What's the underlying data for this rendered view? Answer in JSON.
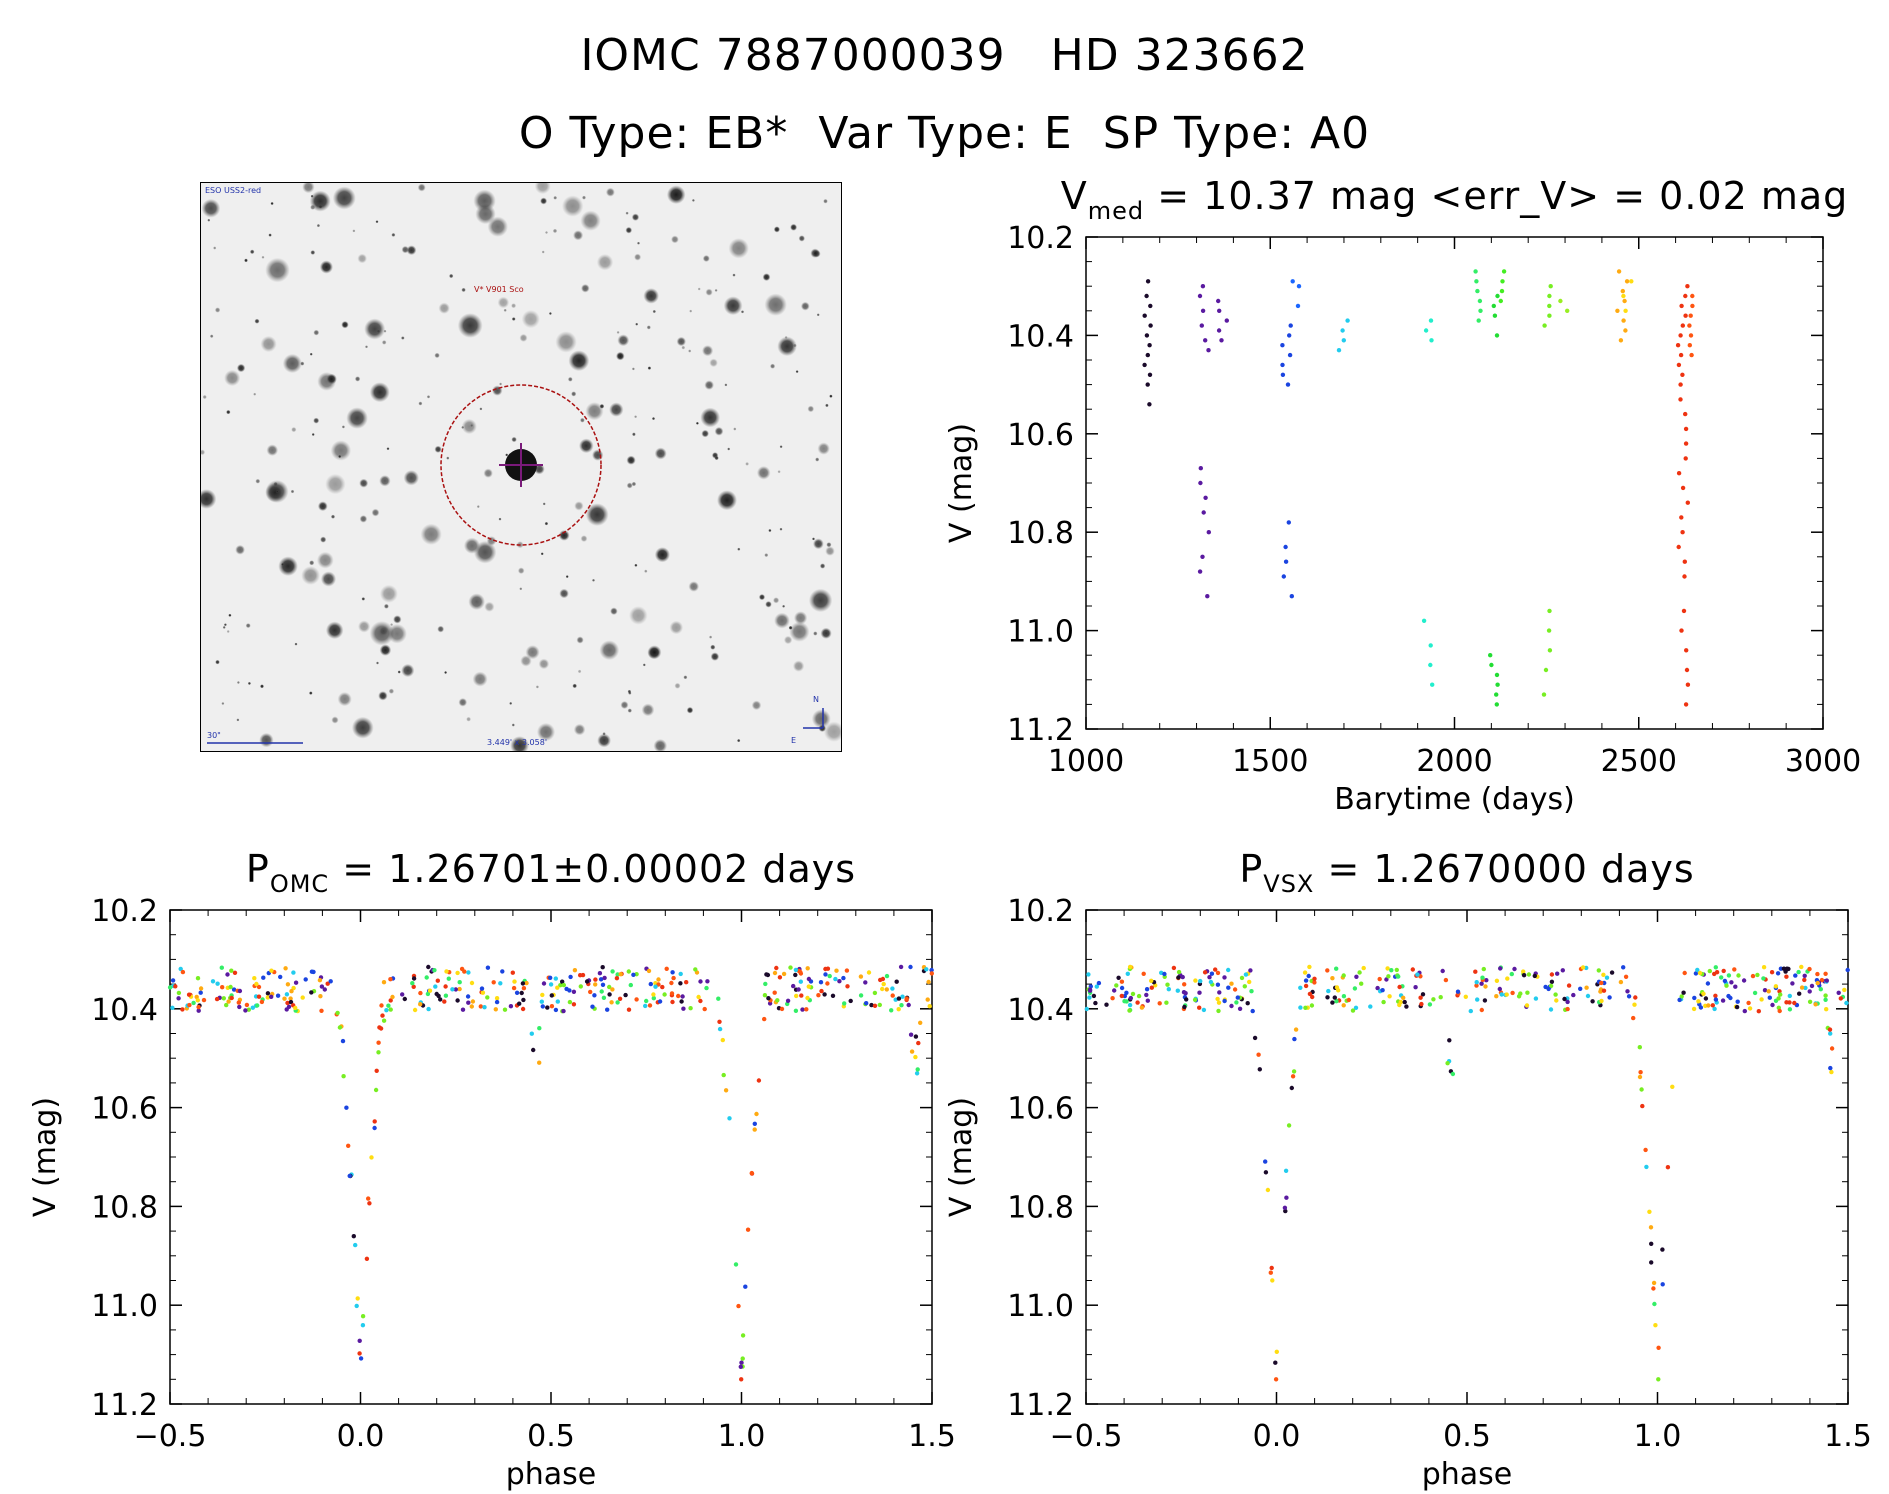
{
  "header": {
    "title_left": "IOMC 7887000039",
    "title_right": "HD 323662",
    "subtitle_o_type": "O Type: EB*",
    "subtitle_var_type": "Var Type: E",
    "subtitle_sp_type": "SP Type: A0"
  },
  "finder_chart": {
    "survey": "ESO USS2-red",
    "target_label": "V* V901 Sco",
    "scale_bar": "30\"",
    "field_size": "3.449' x 3.058'",
    "north": "N",
    "east": "E",
    "colors": {
      "circle": "#aa1111",
      "target": "#7a1a7a",
      "compass": "#2233aa"
    }
  },
  "chart_data": [
    {
      "id": "lightcurve",
      "type": "scatter",
      "title_main": "V",
      "title_sub": "med",
      "title_rest": " = 10.37 mag <err_V> = 0.02 mag",
      "xlabel": "Barytime (days)",
      "ylabel": "V (mag)",
      "xlim": [
        1000,
        3000
      ],
      "ylim": [
        10.2,
        11.2
      ],
      "y_inverted": true,
      "xticks": [
        "1000",
        "1500",
        "2000",
        "2500",
        "3000"
      ],
      "yticks": [
        "10.2",
        "10.4",
        "10.6",
        "10.8",
        "11.0",
        "11.2"
      ],
      "groups": [
        {
          "x": 1170,
          "color": "#1a0a2a",
          "mags": [
            10.29,
            10.32,
            10.34,
            10.36,
            10.38,
            10.4,
            10.42,
            10.44,
            10.46,
            10.48,
            10.5,
            10.54
          ]
        },
        {
          "x": 1320,
          "color": "#5a1aa0",
          "mags": [
            10.3,
            10.32,
            10.35,
            10.38,
            10.41,
            10.43,
            10.67,
            10.7,
            10.73,
            10.76,
            10.8,
            10.85,
            10.88,
            10.93
          ]
        },
        {
          "x": 1370,
          "color": "#5a1aa0",
          "mags": [
            10.33,
            10.35,
            10.37,
            10.39,
            10.41
          ]
        },
        {
          "x": 1545,
          "color": "#1a44e0",
          "mags": [
            10.38,
            10.4,
            10.42,
            10.44,
            10.46,
            10.48,
            10.5,
            10.78,
            10.83,
            10.86,
            10.89,
            10.93
          ]
        },
        {
          "x": 1570,
          "color": "#1a66ff",
          "mags": [
            10.29,
            10.3,
            10.34
          ]
        },
        {
          "x": 1700,
          "color": "#22ccee",
          "mags": [
            10.37,
            10.39,
            10.41,
            10.43
          ]
        },
        {
          "x": 1930,
          "color": "#22eecc",
          "mags": [
            10.37,
            10.39,
            10.41,
            10.98,
            11.03,
            11.07,
            11.11
          ]
        },
        {
          "x": 2060,
          "color": "#33ee66",
          "mags": [
            10.27,
            10.29,
            10.31,
            10.33,
            10.35,
            10.37
          ]
        },
        {
          "x": 2110,
          "color": "#22dd33",
          "mags": [
            10.32,
            10.34,
            10.36,
            10.4,
            11.05,
            11.07,
            11.09,
            11.11,
            11.13,
            11.15
          ]
        },
        {
          "x": 2130,
          "color": "#44ee22",
          "mags": [
            10.27,
            10.29,
            10.31,
            10.33
          ]
        },
        {
          "x": 2250,
          "color": "#77ee22",
          "mags": [
            10.3,
            10.32,
            10.34,
            10.36,
            10.38,
            10.96,
            11.0,
            11.04,
            11.08,
            11.13
          ]
        },
        {
          "x": 2295,
          "color": "#99ee22",
          "mags": [
            10.33,
            10.35
          ]
        },
        {
          "x": 2455,
          "color": "#ffaa11",
          "mags": [
            10.27,
            10.29,
            10.31,
            10.33,
            10.35,
            10.37,
            10.39,
            10.41
          ]
        },
        {
          "x": 2470,
          "color": "#ffdd11",
          "mags": [
            10.29,
            10.32,
            10.35
          ]
        },
        {
          "x": 2620,
          "color": "#ee3311",
          "mags": [
            10.3,
            10.32,
            10.34,
            10.36,
            10.38,
            10.4,
            10.42,
            10.44,
            10.46,
            10.48,
            10.5,
            10.53,
            10.56,
            10.59,
            10.62,
            10.65,
            10.68,
            10.71,
            10.74,
            10.77,
            10.8,
            10.83,
            10.86,
            10.89,
            10.96,
            11.0,
            11.04,
            11.08,
            11.11,
            11.15
          ]
        },
        {
          "x": 2640,
          "color": "#ff5511",
          "mags": [
            10.32,
            10.34,
            10.36,
            10.38,
            10.4,
            10.42,
            10.44
          ]
        }
      ]
    },
    {
      "id": "phase-omc",
      "type": "scatter",
      "title_main": "P",
      "title_sub": "OMC",
      "title_rest": " = 1.26701±0.00002 days",
      "xlabel": "phase",
      "ylabel": "V (mag)",
      "xlim": [
        -0.5,
        1.5
      ],
      "ylim": [
        10.2,
        11.2
      ],
      "y_inverted": true,
      "xticks": [
        "−0.5",
        "0.0",
        "0.5",
        "1.0",
        "1.5"
      ],
      "yticks": [
        "10.2",
        "10.4",
        "10.6",
        "10.8",
        "11.0",
        "11.2"
      ]
    },
    {
      "id": "phase-vsx",
      "type": "scatter",
      "title_main": "P",
      "title_sub": "VSX",
      "title_rest": " = 1.2670000 days",
      "xlabel": "phase",
      "ylabel": "V (mag)",
      "xlim": [
        -0.5,
        1.5
      ],
      "ylim": [
        10.2,
        11.2
      ],
      "y_inverted": true,
      "xticks": [
        "−0.5",
        "0.0",
        "0.5",
        "1.0",
        "1.5"
      ],
      "yticks": [
        "10.2",
        "10.4",
        "10.6",
        "10.8",
        "11.0",
        "11.2"
      ]
    }
  ],
  "phase_curve_model": {
    "maximum_mag": 10.36,
    "minimum_mag": 11.15,
    "minimum_phase": 0.0,
    "eclipse_half_width": 0.07,
    "secondary_dip_mag": 10.5,
    "secondary_dip_phase": 0.46,
    "palette": [
      "#1a0a2a",
      "#5a1aa0",
      "#1a44e0",
      "#22ccee",
      "#33ee66",
      "#77ee22",
      "#ffdd11",
      "#ffaa11",
      "#ff5511",
      "#ee3311"
    ]
  }
}
